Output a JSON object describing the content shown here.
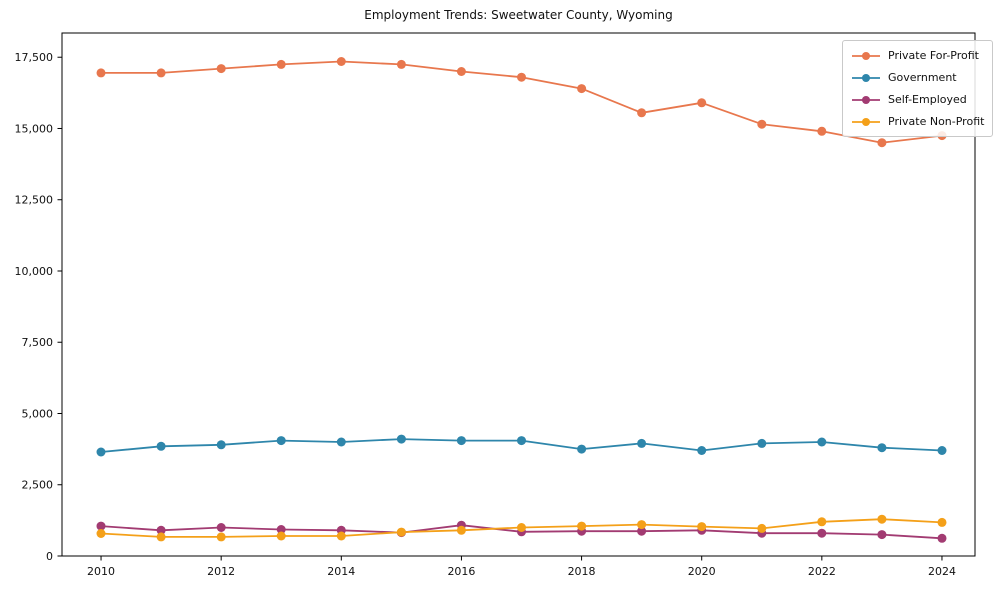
{
  "chart_data": {
    "type": "line",
    "title": "Employment Trends: Sweetwater County, Wyoming",
    "xlabel": "",
    "ylabel": "",
    "x": [
      2010,
      2011,
      2012,
      2013,
      2014,
      2015,
      2016,
      2017,
      2018,
      2019,
      2020,
      2021,
      2022,
      2023,
      2024
    ],
    "series": [
      {
        "name": "Private For-Profit",
        "color": "#E8774D",
        "values": [
          16950,
          16950,
          17100,
          17250,
          17350,
          17250,
          17000,
          16800,
          16400,
          15550,
          15900,
          15150,
          14900,
          14500,
          14750
        ]
      },
      {
        "name": "Government",
        "color": "#2E86AB",
        "values": [
          3650,
          3850,
          3900,
          4050,
          4000,
          4100,
          4050,
          4050,
          3750,
          3950,
          3700,
          3950,
          4000,
          3800,
          3700
        ]
      },
      {
        "name": "Self-Employed",
        "color": "#A23B72",
        "values": [
          1050,
          900,
          1000,
          930,
          900,
          820,
          1080,
          850,
          870,
          870,
          900,
          800,
          800,
          750,
          620
        ]
      },
      {
        "name": "Private Non-Profit",
        "color": "#F4A019",
        "values": [
          790,
          670,
          670,
          700,
          700,
          840,
          900,
          1000,
          1050,
          1100,
          1030,
          970,
          1200,
          1290,
          1180
        ]
      }
    ],
    "xticks": [
      2010,
      2012,
      2014,
      2016,
      2018,
      2020,
      2022,
      2024
    ],
    "yticks": [
      0,
      2500,
      5000,
      7500,
      10000,
      12500,
      15000,
      17500
    ],
    "xlim": [
      2009.35,
      2024.55
    ],
    "ylim": [
      0,
      18350
    ],
    "grid": false,
    "legend_position": "upper right",
    "marker": "circle",
    "line_width": 1.8,
    "marker_radius": 4.5
  }
}
